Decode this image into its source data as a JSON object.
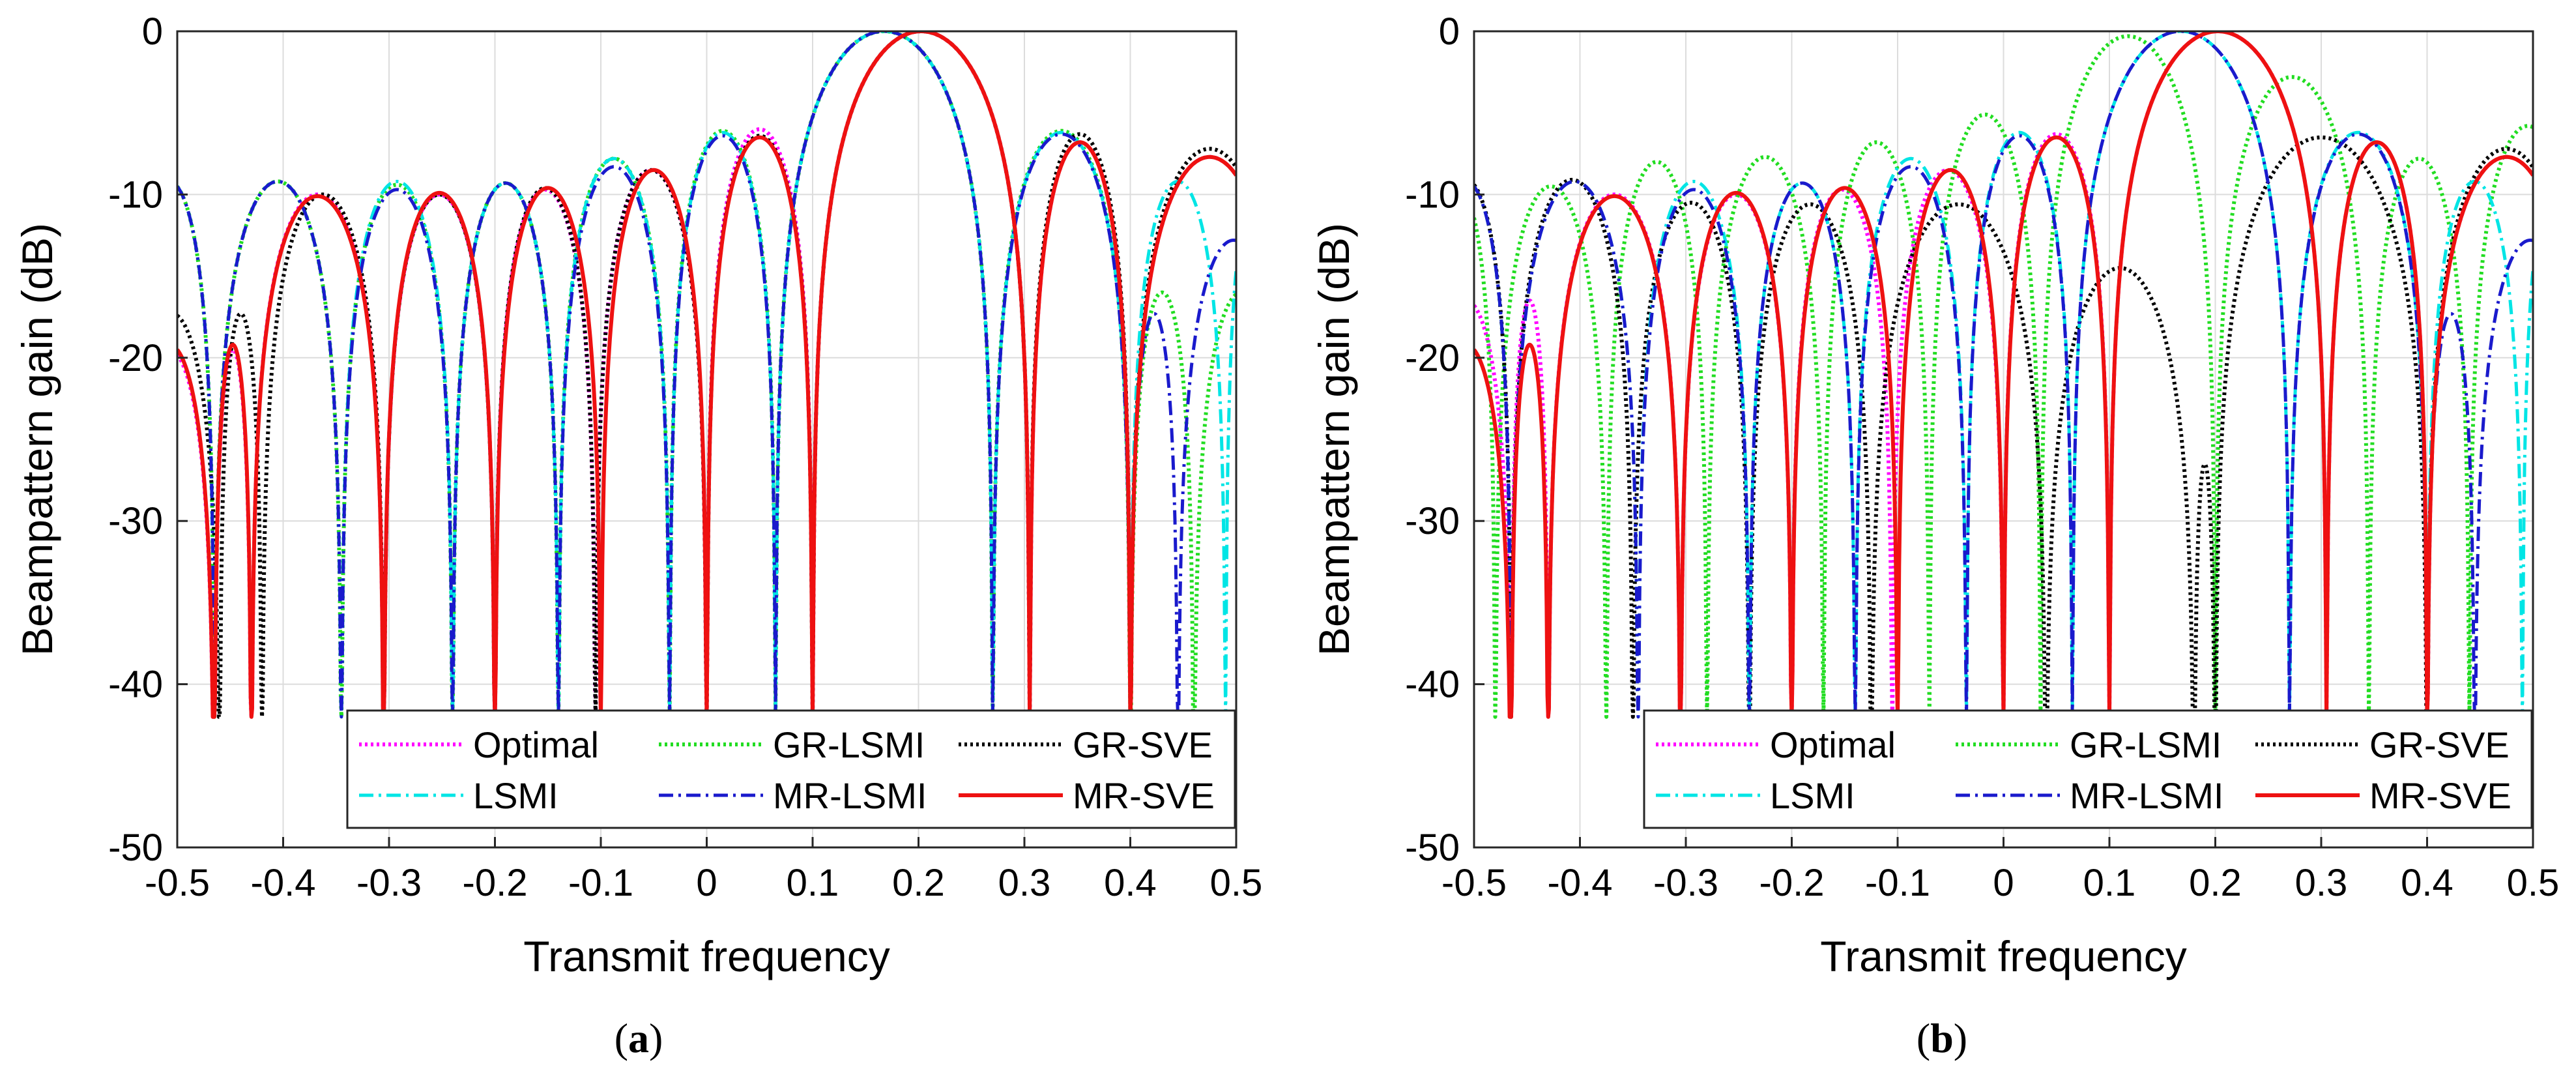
{
  "figure": {
    "sublabels": {
      "a": "a",
      "b": "b"
    }
  },
  "chart_data": [
    {
      "type": "line",
      "panel": "a",
      "xlabel": "Transmit frequency",
      "ylabel": "Beampattern gain (dB)",
      "xlim": [
        -0.5,
        0.5
      ],
      "ylim": [
        -50,
        0
      ],
      "xticks": [
        -0.5,
        -0.4,
        -0.3,
        -0.2,
        -0.1,
        0,
        0.1,
        0.2,
        0.3,
        0.4,
        0.5
      ],
      "yticks": [
        0,
        -10,
        -20,
        -30,
        -40,
        -50
      ],
      "xtick_labels": [
        "-0.5",
        "-0.4",
        "-0.3",
        "-0.2",
        "-0.1",
        "0",
        "0.1",
        "0.2",
        "0.3",
        "0.4",
        "0.5"
      ],
      "ytick_labels": [
        "0",
        "-10",
        "-20",
        "-30",
        "-40",
        "-50"
      ],
      "grid": true,
      "legend_position": "bottom-right",
      "series": [
        {
          "name": "Optimal",
          "color": "#ff00ff",
          "style": "dotted",
          "peak": 0.2,
          "peak_gain": 0,
          "floor": -42,
          "nulls": [
            -0.465,
            -0.43,
            -0.305,
            -0.2,
            -0.105,
            0,
            0.1,
            0.305,
            0.4
          ],
          "lobes": [
            [
              -0.45,
              -19.5
            ],
            [
              -0.37,
              -10
            ],
            [
              -0.25,
              -10
            ],
            [
              -0.15,
              -9.7
            ],
            [
              -0.05,
              -8.5
            ],
            [
              0.055,
              -6
            ],
            [
              0.35,
              -6.8
            ],
            [
              0.46,
              -7.7
            ]
          ]
        },
        {
          "name": "GR-LSMI",
          "color": "#22dd22",
          "style": "dotted",
          "peak": 0.165,
          "peak_gain": 0,
          "floor": -42,
          "nulls": [
            -0.465,
            -0.345,
            -0.24,
            -0.14,
            -0.035,
            0.065,
            0.27,
            0.4,
            0.46
          ],
          "lobes": [
            [
              -0.41,
              -9.2
            ],
            [
              -0.29,
              -9.4
            ],
            [
              -0.19,
              -9.3
            ],
            [
              -0.085,
              -7.8
            ],
            [
              0.015,
              -6.1
            ],
            [
              0.32,
              -6.1
            ],
            [
              0.43,
              -16
            ]
          ]
        },
        {
          "name": "GR-SVE",
          "color": "#000000",
          "style": "dotted",
          "peak": 0.2,
          "peak_gain": 0,
          "floor": -42,
          "nulls": [
            -0.46,
            -0.42,
            -0.305,
            -0.2,
            -0.105,
            0,
            0.1,
            0.305,
            0.4
          ],
          "lobes": [
            [
              -0.44,
              -17.3
            ],
            [
              -0.365,
              -10
            ],
            [
              -0.255,
              -10
            ],
            [
              -0.15,
              -9.6
            ],
            [
              -0.05,
              -8.5
            ],
            [
              0.05,
              -6.4
            ],
            [
              0.35,
              -6.3
            ],
            [
              0.455,
              -7.2
            ]
          ]
        },
        {
          "name": "LSMI",
          "color": "#00e5e5",
          "style": "dashdot",
          "peak": 0.165,
          "peak_gain": 0,
          "floor": -42,
          "nulls": [
            -0.465,
            -0.345,
            -0.24,
            -0.14,
            -0.035,
            0.065,
            0.27,
            0.4,
            0.49
          ],
          "lobes": [
            [
              -0.41,
              -9.2
            ],
            [
              -0.29,
              -9.2
            ],
            [
              -0.19,
              -9.3
            ],
            [
              -0.085,
              -7.8
            ],
            [
              0.015,
              -6.2
            ],
            [
              0.32,
              -6.2
            ],
            [
              0.445,
              -9.2
            ]
          ]
        },
        {
          "name": "MR-LSMI",
          "color": "#1a1acc",
          "style": "dashdot",
          "peak": 0.165,
          "peak_gain": 0,
          "floor": -42,
          "nulls": [
            -0.465,
            -0.345,
            -0.24,
            -0.14,
            -0.035,
            0.065,
            0.27,
            0.4,
            0.445
          ],
          "lobes": [
            [
              -0.41,
              -9.2
            ],
            [
              -0.29,
              -9.7
            ],
            [
              -0.19,
              -9.3
            ],
            [
              -0.085,
              -8.3
            ],
            [
              0.015,
              -6.4
            ],
            [
              0.32,
              -6.3
            ],
            [
              0.42,
              -17.3
            ],
            [
              0.47,
              -12.8
            ]
          ]
        },
        {
          "name": "MR-SVE",
          "color": "#ee1111",
          "style": "solid",
          "peak": 0.2,
          "peak_gain": 0,
          "floor": -42,
          "nulls": [
            -0.465,
            -0.43,
            -0.305,
            -0.2,
            -0.1,
            0,
            0.1,
            0.305,
            0.4
          ],
          "lobes": [
            [
              -0.45,
              -19.2
            ],
            [
              -0.37,
              -10.1
            ],
            [
              -0.25,
              -9.9
            ],
            [
              -0.15,
              -9.6
            ],
            [
              -0.05,
              -8.5
            ],
            [
              0.05,
              -6.5
            ],
            [
              0.35,
              -6.8
            ],
            [
              0.46,
              -7.7
            ]
          ]
        }
      ]
    },
    {
      "type": "line",
      "panel": "b",
      "xlabel": "Transmit frequency",
      "ylabel": "Beampattern gain (dB)",
      "xlim": [
        -0.5,
        0.5
      ],
      "ylim": [
        -50,
        0
      ],
      "xticks": [
        -0.5,
        -0.4,
        -0.3,
        -0.2,
        -0.1,
        0,
        0.1,
        0.2,
        0.3,
        0.4,
        0.5
      ],
      "yticks": [
        0,
        -10,
        -20,
        -30,
        -40,
        -50
      ],
      "xtick_labels": [
        "-0.5",
        "-0.4",
        "-0.3",
        "-0.2",
        "-0.1",
        "0",
        "0.1",
        "0.2",
        "0.3",
        "0.4",
        "0.5"
      ],
      "ytick_labels": [
        "0",
        "-10",
        "-20",
        "-30",
        "-40",
        "-50"
      ],
      "grid": true,
      "legend_position": "bottom-right",
      "series": [
        {
          "name": "Optimal",
          "color": "#ff00ff",
          "style": "dotted",
          "peak": 0.2,
          "peak_gain": 0,
          "floor": -42,
          "nulls": [
            -0.465,
            -0.43,
            -0.305,
            -0.2,
            -0.105,
            0,
            0.1,
            0.305,
            0.4
          ],
          "lobes": [
            [
              -0.45,
              -16.5
            ],
            [
              -0.37,
              -10
            ],
            [
              -0.25,
              -10
            ],
            [
              -0.15,
              -9.7
            ],
            [
              -0.05,
              -8.5
            ],
            [
              0.055,
              -6.3
            ],
            [
              0.35,
              -6.8
            ],
            [
              0.46,
              -7.7
            ]
          ]
        },
        {
          "name": "GR-LSMI",
          "color": "#22dd22",
          "style": "dotted",
          "peak": 0.12,
          "peak_gain": -0.3,
          "floor": -42,
          "nulls": [
            -0.48,
            -0.375,
            -0.28,
            -0.17,
            -0.07,
            0.035,
            0.2,
            0.345,
            0.44
          ],
          "lobes": [
            [
              -0.43,
              -9.5
            ],
            [
              -0.33,
              -8
            ],
            [
              -0.225,
              -7.7
            ],
            [
              -0.12,
              -6.8
            ],
            [
              -0.015,
              -5.1
            ],
            [
              0.265,
              -2.8
            ],
            [
              0.39,
              -7.8
            ],
            [
              0.49,
              -5.8
            ]
          ]
        },
        {
          "name": "GR-SVE",
          "color": "#000000",
          "style": "dotted",
          "peak": 0.31,
          "peak_gain": -6.5,
          "floor": -42,
          "nulls": [
            -0.465,
            -0.35,
            -0.24,
            -0.125,
            0.04,
            0.18,
            0.2,
            0.4
          ],
          "lobes": [
            [
              -0.41,
              -9.1
            ],
            [
              -0.295,
              -10.5
            ],
            [
              -0.185,
              -10.6
            ],
            [
              -0.065,
              -10.6
            ],
            [
              0.11,
              -14.5
            ],
            [
              0.19,
              -26.5
            ],
            [
              0.25,
              -12.5
            ],
            [
              0.46,
              -7.2
            ]
          ]
        },
        {
          "name": "LSMI",
          "color": "#00e5e5",
          "style": "dashdot",
          "peak": 0.165,
          "peak_gain": 0,
          "floor": -42,
          "nulls": [
            -0.465,
            -0.345,
            -0.24,
            -0.14,
            -0.035,
            0.065,
            0.27,
            0.4,
            0.49
          ],
          "lobes": [
            [
              -0.41,
              -9.2
            ],
            [
              -0.29,
              -9.2
            ],
            [
              -0.19,
              -9.3
            ],
            [
              -0.085,
              -7.8
            ],
            [
              0.015,
              -6.2
            ],
            [
              0.32,
              -6.2
            ],
            [
              0.445,
              -9.2
            ]
          ]
        },
        {
          "name": "MR-LSMI",
          "color": "#1a1acc",
          "style": "dashdot",
          "peak": 0.165,
          "peak_gain": 0,
          "floor": -42,
          "nulls": [
            -0.465,
            -0.345,
            -0.24,
            -0.14,
            -0.035,
            0.065,
            0.27,
            0.4,
            0.445
          ],
          "lobes": [
            [
              -0.41,
              -9.2
            ],
            [
              -0.29,
              -9.7
            ],
            [
              -0.19,
              -9.3
            ],
            [
              -0.085,
              -8.3
            ],
            [
              0.015,
              -6.4
            ],
            [
              0.32,
              -6.3
            ],
            [
              0.42,
              -17.3
            ],
            [
              0.47,
              -12.8
            ]
          ]
        },
        {
          "name": "MR-SVE",
          "color": "#ee1111",
          "style": "solid",
          "peak": 0.2,
          "peak_gain": 0,
          "floor": -42,
          "nulls": [
            -0.465,
            -0.43,
            -0.305,
            -0.2,
            -0.1,
            0,
            0.1,
            0.305,
            0.4
          ],
          "lobes": [
            [
              -0.45,
              -19.2
            ],
            [
              -0.37,
              -10.1
            ],
            [
              -0.25,
              -9.9
            ],
            [
              -0.15,
              -9.6
            ],
            [
              -0.05,
              -8.5
            ],
            [
              0.05,
              -6.5
            ],
            [
              0.35,
              -6.8
            ],
            [
              0.46,
              -7.7
            ]
          ]
        }
      ]
    }
  ]
}
